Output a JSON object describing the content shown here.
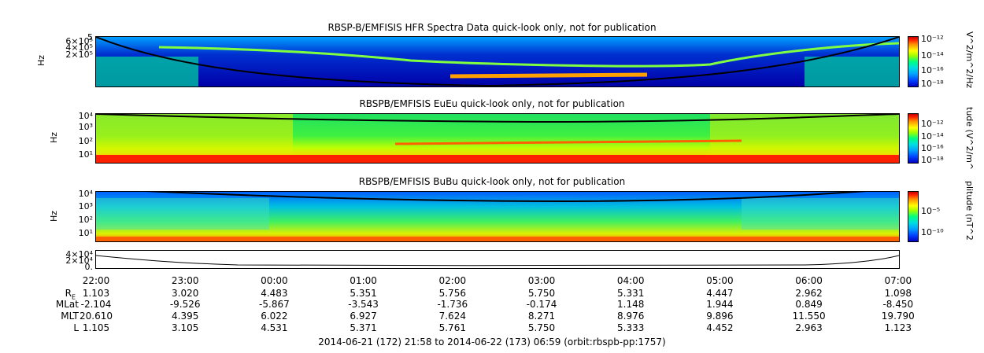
{
  "chart_data": [
    {
      "type": "heatmap",
      "title": "RBSP-B/EMFISIS  HFR Spectra Data quick-look only, not for publication",
      "ylabel": "Hz",
      "ytick_labels": [
        "5",
        "6×10⁵",
        "4×10⁵",
        "2×10⁵"
      ],
      "colorbar_label": "V^2/m^2/Hz",
      "colorbar_ticks": [
        "10⁻¹²",
        "10⁻¹⁴",
        "10⁻¹⁶",
        "10⁻¹⁸"
      ]
    },
    {
      "type": "heatmap",
      "title": "RBSPB/EMFISIS  EuEu quick-look only, not for publication",
      "ylabel": "Hz",
      "ytick_labels": [
        "10⁴",
        "10³",
        "10²",
        "10¹"
      ],
      "colorbar_label": "tude (V^2/m^",
      "colorbar_ticks": [
        "10⁻¹²",
        "10⁻¹⁴",
        "10⁻¹⁶",
        "10⁻¹⁸"
      ]
    },
    {
      "type": "heatmap",
      "title": "RBSPB/EMFISIS  BuBu quick-look only, not for publication",
      "ylabel": "Hz",
      "ytick_labels": [
        "10⁴",
        "10³",
        "10²",
        "10¹"
      ],
      "colorbar_label": "plitude (nT^2",
      "colorbar_ticks": [
        "10⁻⁵",
        "10⁻¹⁰"
      ]
    },
    {
      "type": "line",
      "ytick_labels": [
        "4×10⁴",
        "2×10⁴",
        "0."
      ],
      "x": [
        "22:00",
        "23:00",
        "00:00",
        "01:00",
        "02:00",
        "03:00",
        "04:00",
        "05:00",
        "06:00",
        "07:00"
      ]
    }
  ],
  "xaxis": {
    "times": [
      "22:00",
      "23:00",
      "00:00",
      "01:00",
      "02:00",
      "03:00",
      "04:00",
      "05:00",
      "06:00",
      "07:00"
    ]
  },
  "ephemeris": [
    {
      "label": "RE",
      "values": [
        "1.103",
        "3.020",
        "4.483",
        "5.351",
        "5.756",
        "5.750",
        "5.331",
        "4.447",
        "2.962",
        "1.098"
      ]
    },
    {
      "label": "MLat",
      "values": [
        "-2.104",
        "-9.526",
        "-5.867",
        "-3.543",
        "-1.736",
        "-0.174",
        "1.148",
        "1.944",
        "0.849",
        "-8.450"
      ]
    },
    {
      "label": "MLT",
      "values": [
        "20.610",
        "4.395",
        "6.022",
        "6.927",
        "7.624",
        "8.271",
        "8.976",
        "9.896",
        "11.550",
        "19.790"
      ]
    },
    {
      "label": "L",
      "values": [
        "1.105",
        "3.105",
        "4.531",
        "5.371",
        "5.761",
        "5.750",
        "5.333",
        "4.452",
        "2.963",
        "1.123"
      ]
    }
  ],
  "footer": "2014-06-21 (172) 21:58 to 2014-06-22 (173) 06:59 (orbit:rbspb-pp:1757)",
  "colors": {
    "bg": "#0030d0",
    "mid": "#00e0a0",
    "hot": "#ffe000",
    "red": "#ff2000",
    "line": "#000000"
  }
}
